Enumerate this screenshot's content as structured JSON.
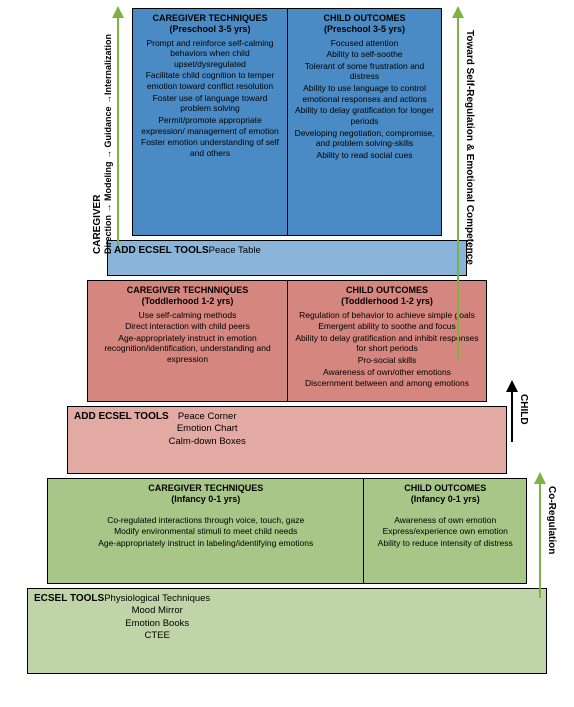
{
  "colors": {
    "blue": "#4a8bc5",
    "lightblue": "#8ab5da",
    "red": "#d4867f",
    "lightred": "#e3a9a3",
    "green": "#a8c688",
    "lightgreen": "#c0d5a7",
    "arrow": "#7fb241",
    "black": "#000000"
  },
  "layout": {
    "widths": {
      "t1": 310,
      "t2": 360,
      "t3": 400,
      "t4": 440,
      "t5": 480,
      "t6": 520
    },
    "heights": {
      "t1": 228,
      "t2": 36,
      "t3": 122,
      "t4": 68,
      "t5": 106,
      "t6": 86
    },
    "t5_left_ratio": 0.66
  },
  "left_label": "CAREGIVER\nDirection → Modeling → Guidance →Internalization",
  "right_top_label": "Toward Self-Regulation & Emotional Competence",
  "right_bottom_child": "CHILD",
  "right_bottom_label": "Co-Regulation",
  "t1": {
    "left": {
      "hdr": "CAREGIVER TECHNIQUES",
      "sub": "(Preschool 3-5 yrs)",
      "items": [
        "Prompt and reinforce self-calming behaviors when child upset/dysregulated",
        "Facilitate child cognition to temper emotion toward conflict resolution",
        "Foster use of language toward problem solving",
        "Permit/promote appropriate expression/ management of emotion",
        "Foster emotion understanding of self and others"
      ]
    },
    "right": {
      "hdr": "CHILD OUTCOMES",
      "sub": "(Preschool 3-5 yrs)",
      "items": [
        "Focused attention",
        "Ability to self-soothe",
        "Tolerant of some frustration and distress",
        "Ability to use language to control emotional responses and actions",
        "Ability to delay gratification for longer periods",
        "Developing negotiation, compromise, and problem solving-skills",
        "Ability to read social cues"
      ]
    }
  },
  "t2": {
    "hdr": "ADD ECSEL TOOLS",
    "items": [
      "Peace Table"
    ]
  },
  "t3": {
    "left": {
      "hdr": "CAREGIVER TECHNNIQUES",
      "sub": "(Toddlerhood 1-2 yrs)",
      "items": [
        "Use self-calming methods",
        "Direct interaction with child peers",
        "Age-appropriately instruct in emotion recognition/identification, understanding and expression"
      ]
    },
    "right": {
      "hdr": "CHILD OUTCOMES",
      "sub": "(Toddlerhood 1-2 yrs)",
      "items": [
        "Regulation of behavior to achieve simple goals",
        "Emergent ability to soothe and focus",
        "Ability to delay gratification and inhibit responses for short periods",
        "Pro-social skills",
        "Awareness of own/other emotions",
        "Discernment between and among emotions"
      ]
    }
  },
  "t4": {
    "hdr": "ADD ECSEL TOOLS",
    "items": [
      "Peace Corner",
      "Emotion Chart",
      "Calm-down Boxes"
    ]
  },
  "t5": {
    "left": {
      "hdr": "CAREGIVER TECHNIQUES",
      "sub": "(Infancy 0-1 yrs)",
      "items": [
        "Co-regulated interactions through voice, touch, gaze",
        "Modify environmental stimuli to meet child needs",
        "Age-appropriately instruct in labeling/identifying emotions"
      ]
    },
    "right": {
      "hdr": "CHILD OUTCOMES",
      "sub": "(Infancy 0-1 yrs)",
      "items": [
        "Awareness of own emotion",
        "Express/experience own emotion",
        "Ability to reduce intensity of distress"
      ]
    }
  },
  "t6": {
    "hdr": "ECSEL TOOLS",
    "items": [
      "Physiological Techniques",
      "Mood Mirror",
      "Emotion Books",
      "CTEE"
    ]
  }
}
